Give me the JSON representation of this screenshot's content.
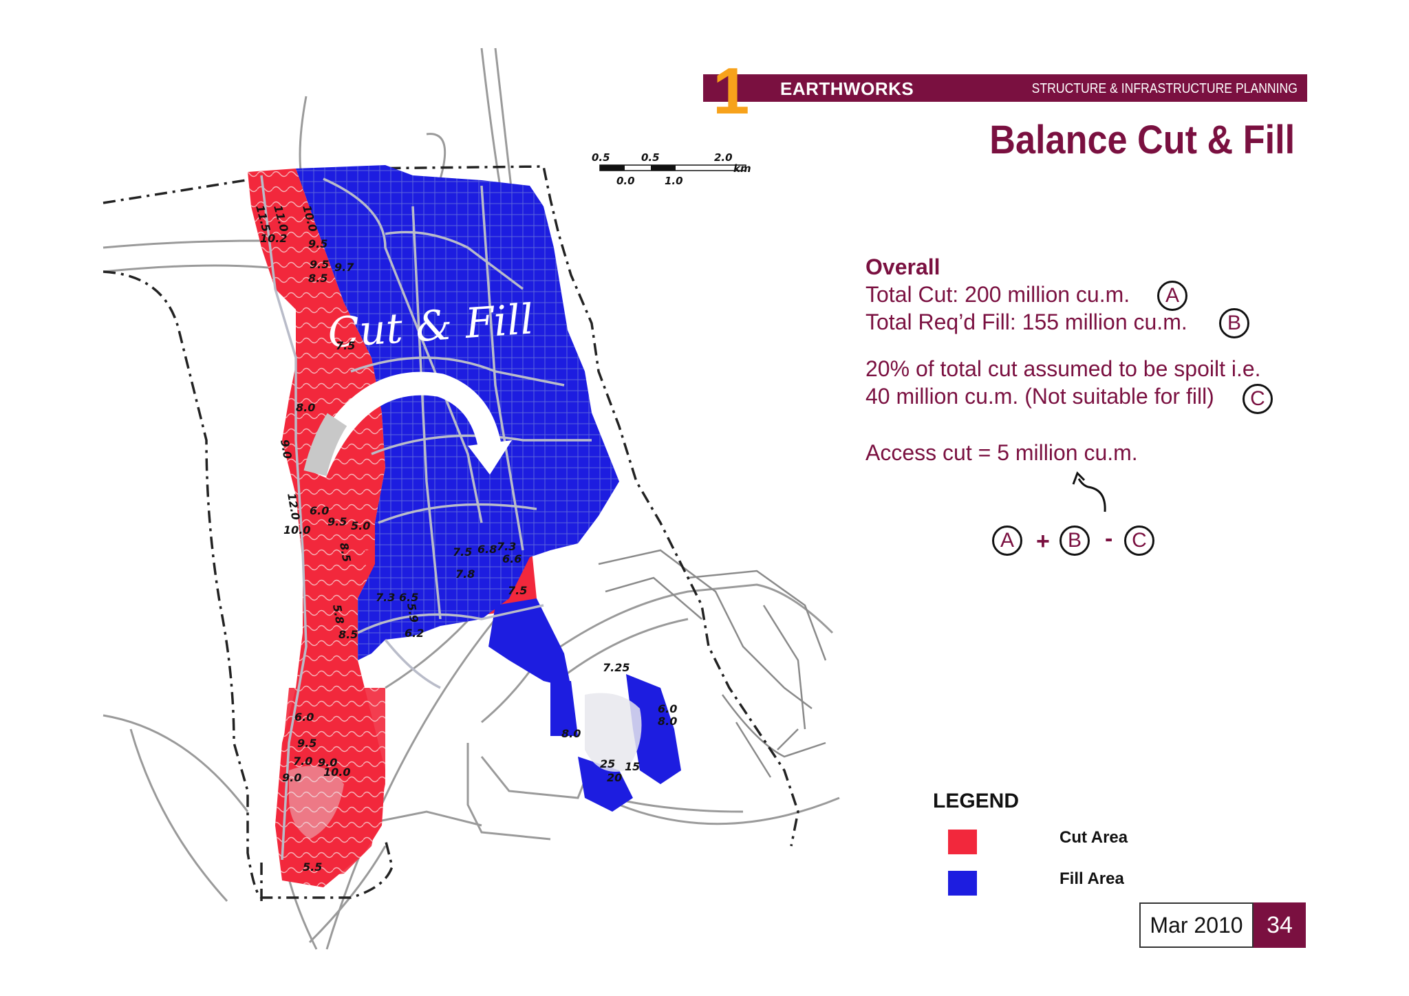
{
  "header": {
    "number": "1",
    "section": "EARTHWORKS",
    "subtitle": "STRUCTURE & INFRASTRUCTURE PLANNING"
  },
  "title": "Balance Cut & Fill",
  "map": {
    "overlay_label": "Cut & Fill",
    "scale_bar": {
      "top_labels": [
        "0.5",
        "0.5",
        "2.0"
      ],
      "bottom_labels": [
        "0.0",
        "1.0"
      ],
      "unit": "km"
    },
    "cut_color": "#f2283c",
    "fill_color": "#1d1de0",
    "elevation_labels": [
      "11.5",
      "11.0",
      "10.0",
      "10.2",
      "9.5",
      "9.5",
      "9.7",
      "8.5",
      "7.5",
      "8.0",
      "9.0",
      "12.0",
      "6.0",
      "10.0",
      "9.5",
      "5.0",
      "8.5",
      "7.5",
      "6.8",
      "7.3",
      "7.8",
      "6.6",
      "7.5",
      "7.3",
      "6.5",
      "5.9",
      "6.2",
      "5.8",
      "8.5",
      "6.0",
      "9.5",
      "7.0",
      "9.0",
      "9.0",
      "10.0",
      "5.5",
      "8.0",
      "25",
      "15",
      "20",
      "7.25",
      "6.0",
      "8.0"
    ]
  },
  "overall": {
    "heading": "Overall",
    "total_cut": "Total Cut: 200 million cu.m.",
    "total_fill": "Total Req’d Fill:  155 million cu.m.",
    "spoilt_line1": "20% of total cut assumed to be spoilt i.e.",
    "spoilt_line2": "40 million cu.m. (Not suitable for fill)",
    "access_cut": "Access cut = 5 million cu.m.",
    "marker_a": "A",
    "marker_b": "B",
    "marker_c": "C",
    "formula": {
      "a": "A",
      "plus": "+",
      "b": "B",
      "minus": "-",
      "c": "C"
    }
  },
  "legend": {
    "title": "LEGEND",
    "items": [
      {
        "label": "Cut Area",
        "color": "#f2283c"
      },
      {
        "label": "Fill Area",
        "color": "#1d1de0"
      }
    ]
  },
  "footer": {
    "date": "Mar 2010",
    "page": "34"
  }
}
